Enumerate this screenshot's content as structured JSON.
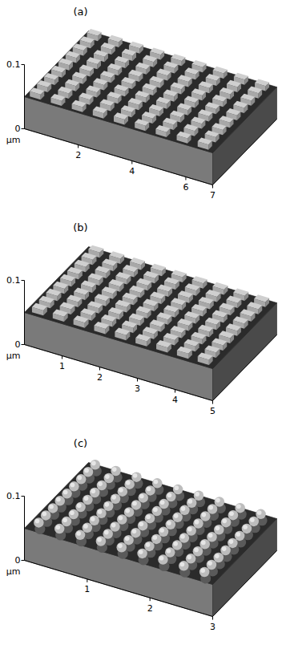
{
  "chart_data": [
    {
      "type": "surface3d",
      "title": "(a)",
      "xlim": [
        0,
        7
      ],
      "ylim": [
        0,
        7
      ],
      "zlim": [
        0,
        0.1
      ],
      "xticks": [
        2,
        4,
        6,
        7
      ],
      "zticks": [
        0,
        0.1
      ],
      "axis_label": "µm",
      "marker": "square",
      "base_height": 0.05,
      "bump_height": 0.008,
      "bump_size": 0.4,
      "bump_x": [
        0.35,
        1.13,
        1.91,
        2.69,
        3.47,
        4.25,
        5.03,
        5.81,
        6.59
      ],
      "bump_y": [
        0.35,
        1.13,
        1.91,
        2.69,
        3.47,
        4.25,
        5.03,
        5.81,
        6.59
      ]
    },
    {
      "type": "surface3d",
      "title": "(b)",
      "xlim": [
        0,
        5
      ],
      "ylim": [
        0,
        5
      ],
      "zlim": [
        0,
        0.1
      ],
      "xticks": [
        1,
        2,
        3,
        4,
        5
      ],
      "zticks": [
        0,
        0.1
      ],
      "axis_label": "µm",
      "marker": "square",
      "base_height": 0.05,
      "bump_height": 0.008,
      "bump_size": 0.3,
      "bump_x": [
        0.3,
        0.85,
        1.4,
        1.95,
        2.5,
        3.05,
        3.6,
        4.15,
        4.7
      ],
      "bump_y": [
        0.3,
        0.85,
        1.4,
        1.95,
        2.5,
        3.05,
        3.6,
        4.15,
        4.7
      ]
    },
    {
      "type": "surface3d",
      "title": "(c)",
      "xlim": [
        0,
        3
      ],
      "ylim": [
        0,
        3
      ],
      "zlim": [
        0,
        0.1
      ],
      "xticks": [
        1,
        2,
        3
      ],
      "zticks": [
        0,
        0.1
      ],
      "axis_label": "µm",
      "marker": "circle",
      "base_height": 0.05,
      "bump_height": 0.008,
      "bump_size": 0.18,
      "bump_x": [
        0.17,
        0.5,
        0.83,
        1.16,
        1.49,
        1.82,
        2.15,
        2.48,
        2.81
      ],
      "bump_y": [
        0.17,
        0.5,
        0.83,
        1.16,
        1.49,
        1.82,
        2.15,
        2.48,
        2.81
      ]
    }
  ]
}
